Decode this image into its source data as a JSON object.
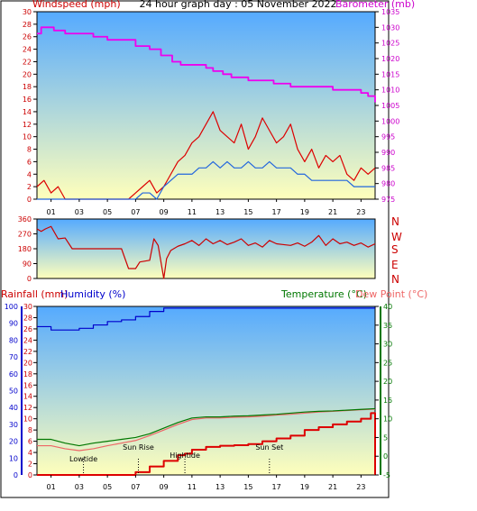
{
  "colors": {
    "wind": "#dd0000",
    "gust_dir": "#cc0000",
    "avg": "#2266dd",
    "baro": "#ee00ee",
    "humidity": "#0000cc",
    "temp": "#007700",
    "dew": "#ee6666",
    "rain": "#dd0000",
    "axis_left": "#cc0000",
    "axis_right": "#cc00cc",
    "bg_top": "#55aaff",
    "bg_bottom": "#ffffbb"
  },
  "header": {
    "windspeed_label": "Windspeed (mph)",
    "title": "24 hour graph day : 05 November 2022",
    "barometer_label": "Barometer (mb)"
  },
  "lower_header": {
    "rainfall_label": "Rainfall (mm)",
    "humidity_label": "Humidity (%)",
    "temperature_label": "Temperature (°C)",
    "dewpoint_label": "Dew Point (°C)"
  },
  "compass": [
    "N",
    "W",
    "S",
    "E",
    "N"
  ],
  "events": [
    {
      "label": "Lowtide",
      "hour": 3.3
    },
    {
      "label": "Sun Rise",
      "hour": 7.2
    },
    {
      "label": "Hightide",
      "hour": 10.5
    },
    {
      "label": "Sun Set",
      "hour": 16.5
    }
  ],
  "chart_data": [
    {
      "type": "line",
      "name": "wind",
      "x_ticks": [
        "01",
        "03",
        "05",
        "07",
        "09",
        "11",
        "13",
        "15",
        "17",
        "19",
        "21",
        "23"
      ],
      "xlim": [
        0,
        24
      ],
      "ylim_left": [
        0,
        30
      ],
      "yticks_left": [
        0,
        2,
        4,
        6,
        8,
        10,
        12,
        14,
        16,
        18,
        20,
        22,
        24,
        26,
        28,
        30
      ],
      "ylim_right": [
        975,
        1035
      ],
      "yticks_right": [
        975,
        980,
        985,
        990,
        995,
        1000,
        1005,
        1010,
        1015,
        1020,
        1025,
        1030,
        1035
      ],
      "series": [
        {
          "key": "gust",
          "x": [
            0,
            0.5,
            1,
            1.5,
            2,
            2.5,
            3,
            3.5,
            4,
            4.5,
            5,
            5.5,
            6,
            6.5,
            7,
            7.5,
            8,
            8.5,
            9,
            9.5,
            10,
            10.5,
            11,
            11.5,
            12,
            12.5,
            13,
            13.5,
            14,
            14.5,
            15,
            15.5,
            16,
            16.5,
            17,
            17.5,
            18,
            18.5,
            19,
            19.5,
            20,
            20.5,
            21,
            21.5,
            22,
            22.5,
            23,
            23.5,
            24
          ],
          "y": [
            2,
            3,
            1,
            2,
            0,
            0,
            0,
            0,
            0,
            0,
            0,
            0,
            0,
            0,
            1,
            2,
            3,
            1,
            2,
            4,
            6,
            7,
            9,
            10,
            12,
            14,
            11,
            10,
            9,
            12,
            8,
            10,
            13,
            11,
            9,
            10,
            12,
            8,
            6,
            8,
            5,
            7,
            6,
            7,
            4,
            3,
            5,
            4,
            5
          ]
        },
        {
          "key": "average",
          "x": [
            0,
            1,
            2,
            3,
            4,
            5,
            6,
            7,
            7.5,
            8,
            8.5,
            9,
            9.5,
            10,
            10.5,
            11,
            11.5,
            12,
            12.5,
            13,
            13.5,
            14,
            14.5,
            15,
            15.5,
            16,
            16.5,
            17,
            17.5,
            18,
            18.5,
            19,
            19.5,
            20,
            20.5,
            21,
            21.5,
            22,
            22.5,
            23,
            23.5,
            24
          ],
          "y": [
            0,
            0,
            0,
            0,
            0,
            0,
            0,
            0,
            1,
            1,
            0,
            2,
            3,
            4,
            4,
            4,
            5,
            5,
            6,
            5,
            6,
            5,
            5,
            6,
            5,
            5,
            6,
            5,
            5,
            5,
            4,
            4,
            3,
            3,
            3,
            3,
            3,
            3,
            2,
            2,
            2,
            2
          ]
        },
        {
          "key": "barometer",
          "x": [
            0,
            0.3,
            0.8,
            1.2,
            2,
            3,
            4,
            5,
            6,
            7,
            8,
            8.8,
            9.6,
            10.2,
            11,
            12,
            12.5,
            13.2,
            13.8,
            14.5,
            15,
            16,
            16.8,
            17.5,
            18,
            19,
            20,
            21,
            22,
            23,
            23.5,
            24
          ],
          "y": [
            1028,
            1030,
            1030,
            1029,
            1028,
            1028,
            1027,
            1026,
            1026,
            1024,
            1023,
            1021,
            1019,
            1018,
            1018,
            1017,
            1016,
            1015,
            1014,
            1014,
            1013,
            1013,
            1012,
            1012,
            1011,
            1011,
            1011,
            1010,
            1010,
            1009,
            1008,
            1006
          ]
        }
      ]
    },
    {
      "type": "line",
      "name": "wind_direction",
      "xlim": [
        0,
        24
      ],
      "ylim": [
        0,
        360
      ],
      "yticks": [
        0,
        90,
        180,
        270,
        360
      ],
      "series": [
        {
          "key": "direction",
          "x": [
            0,
            0.3,
            0.6,
            1,
            1.5,
            2,
            2.5,
            3,
            3.5,
            4,
            5,
            6,
            6.5,
            7,
            7.3,
            8,
            8.3,
            8.6,
            9,
            9.2,
            9.5,
            10,
            10.5,
            11,
            11.5,
            12,
            12.5,
            13,
            13.5,
            14,
            14.5,
            15,
            15.5,
            16,
            16.5,
            17,
            17.5,
            18,
            18.5,
            19,
            19.5,
            20,
            20.5,
            21,
            21.5,
            22,
            22.5,
            23,
            23.5,
            24
          ],
          "y": [
            300,
            285,
            300,
            315,
            240,
            245,
            180,
            180,
            180,
            180,
            180,
            180,
            60,
            60,
            100,
            110,
            240,
            200,
            0,
            120,
            170,
            195,
            210,
            230,
            200,
            240,
            210,
            230,
            205,
            220,
            240,
            200,
            215,
            190,
            230,
            210,
            205,
            200,
            215,
            195,
            220,
            260,
            200,
            240,
            210,
            220,
            200,
            215,
            190,
            210
          ]
        }
      ]
    },
    {
      "type": "line",
      "name": "rain_humidity_temperature",
      "xlim": [
        0,
        24
      ],
      "ylim_humidity": [
        0,
        100
      ],
      "yticks_humidity": [
        0,
        10,
        20,
        30,
        40,
        50,
        60,
        70,
        80,
        90,
        100
      ],
      "ylim_rain": [
        0,
        30
      ],
      "yticks_rain": [
        0,
        2,
        4,
        6,
        8,
        10,
        12,
        14,
        16,
        18,
        20,
        22,
        24,
        26,
        28,
        30
      ],
      "ylim_temp": [
        -5,
        40
      ],
      "yticks_temp": [
        -5,
        0,
        5,
        10,
        15,
        20,
        25,
        30,
        35,
        40
      ],
      "series": [
        {
          "key": "humidity",
          "x": [
            0,
            1,
            2,
            3,
            4,
            5,
            6,
            7,
            8,
            9,
            10,
            11,
            12,
            13,
            14,
            15,
            16,
            17,
            18,
            19,
            20,
            21,
            22,
            23,
            24
          ],
          "y": [
            88,
            86,
            86,
            87,
            89,
            91,
            92,
            94,
            97,
            99,
            99,
            99,
            99,
            99,
            99,
            99,
            99,
            99,
            99,
            99,
            99,
            99,
            99,
            99,
            99
          ]
        },
        {
          "key": "temperature",
          "x": [
            0,
            1,
            2,
            3,
            4,
            5,
            6,
            7,
            8,
            9,
            10,
            11,
            12,
            13,
            14,
            15,
            16,
            17,
            18,
            19,
            20,
            21,
            22,
            23,
            24
          ],
          "y": [
            4.5,
            4.5,
            3.5,
            2.8,
            3.5,
            4.0,
            4.5,
            5.0,
            6.0,
            7.5,
            9.0,
            10.2,
            10.5,
            10.5,
            10.7,
            10.8,
            11.0,
            11.2,
            11.5,
            11.8,
            12.0,
            12.1,
            12.3,
            12.5,
            12.7
          ]
        },
        {
          "key": "dew_point",
          "x": [
            0,
            1,
            2,
            3,
            4,
            5,
            6,
            7,
            8,
            9,
            10,
            11,
            12,
            13,
            14,
            15,
            16,
            17,
            18,
            19,
            20,
            21,
            22,
            23,
            24
          ],
          "y": [
            2.8,
            2.8,
            2.0,
            1.5,
            2.0,
            2.8,
            3.5,
            4.2,
            5.5,
            7.0,
            8.5,
            9.8,
            10.2,
            10.2,
            10.4,
            10.5,
            10.7,
            11.0,
            11.2,
            11.5,
            11.8,
            12.0,
            12.2,
            12.4,
            12.6
          ]
        },
        {
          "key": "rainfall",
          "x": [
            0,
            1,
            2,
            3,
            4,
            5,
            6,
            7,
            8,
            9,
            10,
            10.5,
            11,
            12,
            13,
            14,
            15,
            16,
            17,
            18,
            19,
            20,
            21,
            22,
            23,
            23.7,
            24
          ],
          "y": [
            0,
            0,
            0,
            0,
            0,
            0,
            0,
            0.5,
            1.5,
            2.5,
            3.5,
            3.8,
            4.5,
            5.0,
            5.2,
            5.3,
            5.5,
            6.0,
            6.5,
            7.0,
            8.0,
            8.5,
            9.0,
            9.5,
            10.0,
            11.0,
            0
          ]
        }
      ]
    }
  ]
}
